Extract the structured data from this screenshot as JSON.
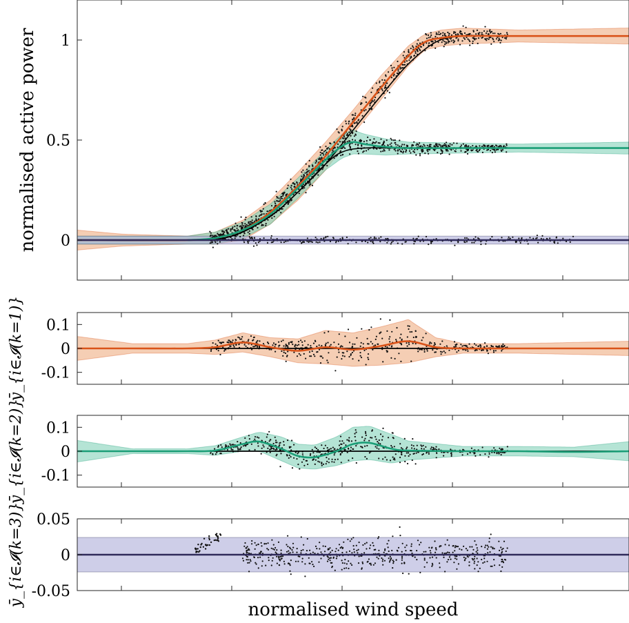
{
  "colors": {
    "orange": "#d95319",
    "orange_band": "#f0b48c",
    "green": "#1b9e77",
    "green_band": "#8ed6be",
    "purple": "#2f2a5a",
    "purple_band": "#b3b3dc",
    "black": "#000000"
  },
  "figure": {
    "xlabel": "normalised wind speed"
  },
  "chart_data": [
    {
      "type": "line",
      "ylabel": "normalised active power",
      "yticks": [
        "0",
        "0.5",
        "1"
      ],
      "ytick_values": [
        0,
        0.5,
        1
      ],
      "ylim": [
        -0.2,
        1.2
      ],
      "xlim": [
        0,
        1
      ],
      "series": [
        {
          "color_key": "orange",
          "x": [
            0,
            0.08,
            0.2,
            0.25,
            0.3,
            0.35,
            0.4,
            0.45,
            0.5,
            0.55,
            0.6,
            0.63,
            0.66,
            0.7,
            0.8,
            1.0
          ],
          "values": [
            0,
            0,
            0,
            0.01,
            0.05,
            0.14,
            0.27,
            0.42,
            0.59,
            0.76,
            0.92,
            0.99,
            1.01,
            1.02,
            1.02,
            1.02
          ],
          "band": [
            0.05,
            0.03,
            0.02,
            0.03,
            0.05,
            0.06,
            0.07,
            0.07,
            0.06,
            0.06,
            0.05,
            0.04,
            0.04,
            0.04,
            0.03,
            0.04
          ]
        },
        {
          "color_key": "green",
          "x": [
            0.2,
            0.25,
            0.3,
            0.35,
            0.4,
            0.45,
            0.48,
            0.5,
            0.52,
            0.56,
            0.6,
            0.7,
            0.8,
            1.0
          ],
          "values": [
            0,
            0.01,
            0.05,
            0.13,
            0.26,
            0.4,
            0.47,
            0.49,
            0.48,
            0.465,
            0.46,
            0.46,
            0.46,
            0.46
          ],
          "band": [
            0.02,
            0.03,
            0.04,
            0.05,
            0.05,
            0.05,
            0.06,
            0.06,
            0.05,
            0.04,
            0.03,
            0.025,
            0.02,
            0.03
          ]
        },
        {
          "color_key": "purple",
          "x": [
            0,
            1
          ],
          "values": [
            0,
            0
          ],
          "band": [
            0.02,
            0.02
          ]
        }
      ],
      "reference_lines": [
        {
          "x": [
            0,
            0.2,
            0.28,
            0.35,
            0.4,
            0.45,
            0.5,
            0.55,
            0.6,
            0.65,
            0.7,
            0.8,
            1.0
          ],
          "values": [
            0,
            0,
            0.02,
            0.12,
            0.24,
            0.38,
            0.55,
            0.72,
            0.88,
            0.99,
            1.02,
            1.02,
            1.02
          ]
        },
        {
          "x": [
            0,
            0.2,
            0.28,
            0.35,
            0.4,
            0.45,
            0.48,
            0.52,
            0.6,
            1.0
          ],
          "values": [
            0,
            0,
            0.02,
            0.12,
            0.24,
            0.38,
            0.44,
            0.46,
            0.46,
            0.46
          ]
        }
      ]
    },
    {
      "type": "line",
      "ylabel": "ȳ_{i∈𝓘(k=1)}",
      "yticks": [
        "0.1",
        "0",
        "-0.1"
      ],
      "ytick_values": [
        0.1,
        0,
        -0.1
      ],
      "ylim": [
        -0.15,
        0.15
      ],
      "xlim": [
        0,
        1
      ],
      "series": [
        {
          "color_key": "orange",
          "x": [
            0,
            0.1,
            0.2,
            0.25,
            0.3,
            0.35,
            0.4,
            0.45,
            0.5,
            0.55,
            0.6,
            0.65,
            0.7,
            0.8,
            1.0
          ],
          "values": [
            0,
            0,
            0,
            0.005,
            0.025,
            0.005,
            -0.01,
            0.005,
            -0.005,
            0.01,
            0.03,
            0.005,
            0,
            0,
            0
          ],
          "band": [
            0.05,
            0.02,
            0.02,
            0.03,
            0.04,
            0.04,
            0.05,
            0.07,
            0.07,
            0.08,
            0.09,
            0.04,
            0.02,
            0.02,
            0.03
          ]
        }
      ]
    },
    {
      "type": "line",
      "ylabel": "ȳ_{i∈𝓘(k=2)}",
      "yticks": [
        "0.1",
        "0",
        "-0.1"
      ],
      "ytick_values": [
        0.1,
        0,
        -0.1
      ],
      "ylim": [
        -0.15,
        0.15
      ],
      "xlim": [
        0,
        1
      ],
      "series": [
        {
          "color_key": "green",
          "x": [
            0,
            0.1,
            0.2,
            0.25,
            0.3,
            0.33,
            0.37,
            0.4,
            0.43,
            0.47,
            0.5,
            0.53,
            0.57,
            0.6,
            0.7,
            0.8,
            0.9,
            1.0
          ],
          "values": [
            0,
            0,
            0,
            0.003,
            0.03,
            0.04,
            0.01,
            -0.02,
            -0.025,
            0,
            0.03,
            0.035,
            0.01,
            0.003,
            0,
            0,
            -0.003,
            0
          ],
          "band": [
            0.045,
            0.01,
            0.01,
            0.02,
            0.03,
            0.04,
            0.05,
            0.05,
            0.05,
            0.06,
            0.07,
            0.07,
            0.06,
            0.04,
            0.02,
            0.02,
            0.02,
            0.04
          ]
        }
      ]
    },
    {
      "type": "line",
      "ylabel": "ȳ_{i∈𝓘(k=3)}",
      "yticks": [
        "0.05",
        "0",
        "-0.05"
      ],
      "ytick_values": [
        0.05,
        0,
        -0.05
      ],
      "ylim": [
        -0.05,
        0.05
      ],
      "xlim": [
        0,
        1
      ],
      "series": [
        {
          "color_key": "purple",
          "x": [
            0,
            1
          ],
          "values": [
            0,
            0
          ],
          "band": [
            0.024,
            0.024
          ]
        }
      ]
    }
  ]
}
